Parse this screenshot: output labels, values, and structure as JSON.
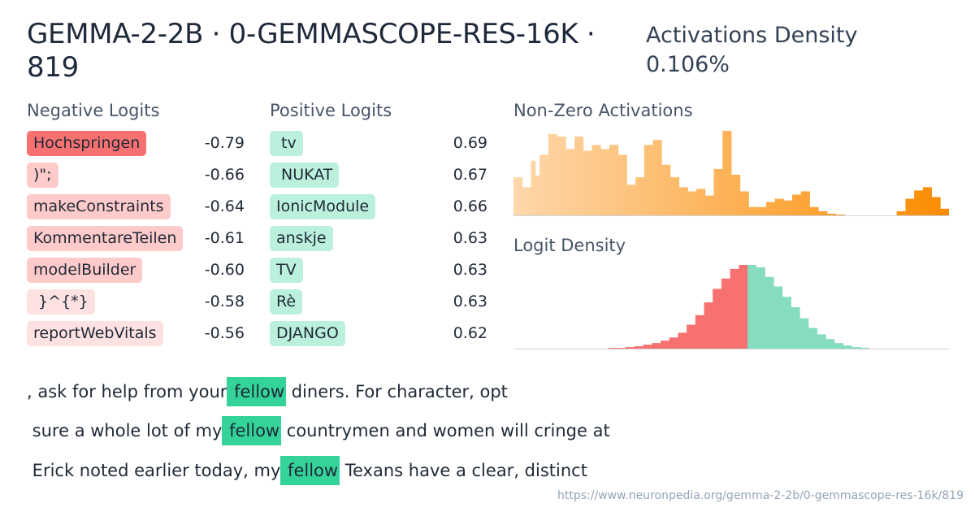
{
  "title": "GEMMA-2-2B · 0-GEMMASCOPE-RES-16K · 819",
  "density": {
    "label": "Activations Density",
    "value": "0.106%"
  },
  "negative": {
    "heading": "Negative Logits",
    "items": [
      {
        "token": "Hochspringen",
        "value": "-0.79",
        "color": "#f87171"
      },
      {
        "token": ")\";",
        "value": "-0.66",
        "color": "#fecaca"
      },
      {
        "token": "makeConstraints",
        "value": "-0.64",
        "color": "#fecaca"
      },
      {
        "token": "KommentareTeilen",
        "value": "-0.61",
        "color": "#fecaca"
      },
      {
        "token": "modelBuilder",
        "value": "-0.60",
        "color": "#fecaca"
      },
      {
        "token": " }^{*}",
        "value": "-0.58",
        "color": "#fee2e2"
      },
      {
        "token": "reportWebVitals",
        "value": "-0.56",
        "color": "#fee2e2"
      }
    ]
  },
  "positive": {
    "heading": "Positive Logits",
    "items": [
      {
        "token": " tv",
        "value": "0.69",
        "color": "#bbf0dc"
      },
      {
        "token": " NUKAT",
        "value": "0.67",
        "color": "#bbf0dc"
      },
      {
        "token": "IonicModule",
        "value": "0.66",
        "color": "#bbf0dc"
      },
      {
        "token": "anskje",
        "value": "0.63",
        "color": "#bbf0dc"
      },
      {
        "token": "TV",
        "value": "0.63",
        "color": "#bbf0dc"
      },
      {
        "token": "Rè",
        "value": "0.63",
        "color": "#bbf0dc"
      },
      {
        "token": "DJANGO",
        "value": "0.62",
        "color": "#bbf0dc"
      }
    ]
  },
  "activations": {
    "heading": "Non-Zero Activations",
    "color_start": "#fed7aa",
    "color_end": "#fb8c00",
    "values": [
      46,
      46,
      34,
      34,
      66,
      48,
      73,
      73,
      98,
      98,
      95,
      95,
      80,
      80,
      95,
      95,
      78,
      78,
      85,
      85,
      80,
      80,
      85,
      85,
      73,
      73,
      37,
      37,
      46,
      46,
      85,
      85,
      91,
      91,
      61,
      61,
      46,
      46,
      34,
      34,
      29,
      29,
      32,
      32,
      24,
      24,
      56,
      56,
      102,
      102,
      49,
      49,
      29,
      29,
      10,
      10,
      10,
      10,
      16,
      16,
      20,
      20,
      18,
      18,
      25,
      25,
      29,
      29,
      10,
      10,
      5,
      5,
      2,
      2,
      1,
      1,
      0,
      0,
      0,
      0,
      0,
      0,
      0,
      0,
      0,
      0,
      0,
      0,
      5,
      5,
      20,
      20,
      30,
      30,
      34,
      34,
      22,
      22,
      8,
      8
    ]
  },
  "logit_density": {
    "heading": "Logit Density",
    "neg_color": "#f87171",
    "pos_color": "#86dcbf",
    "neg_values": [
      0,
      0,
      0,
      0,
      0,
      0,
      0,
      0,
      0,
      0,
      0,
      0,
      0,
      0,
      1,
      1,
      2,
      3,
      5,
      7,
      10,
      14,
      20,
      30,
      42,
      58,
      75,
      88,
      100,
      105
    ],
    "pos_values": [
      105,
      102,
      90,
      78,
      65,
      52,
      38,
      26,
      18,
      12,
      7,
      4,
      2,
      1,
      0,
      0,
      0,
      0,
      0,
      0,
      0,
      0,
      0,
      0,
      0,
      0
    ]
  },
  "contexts": [
    {
      "before": ", ask for help from your",
      "highlight": " fellow",
      "after": " diners. For character, opt"
    },
    {
      "before": " sure a whole lot of my",
      "highlight": " fellow",
      "after": " countrymen and women will cringe at"
    },
    {
      "before": " Erick noted earlier today, my",
      "highlight": " fellow",
      "after": " Texans have a clear, distinct"
    }
  ],
  "url": "https://www.neuronpedia.org/gemma-2-2b/0-gemmascope-res-16k/819"
}
